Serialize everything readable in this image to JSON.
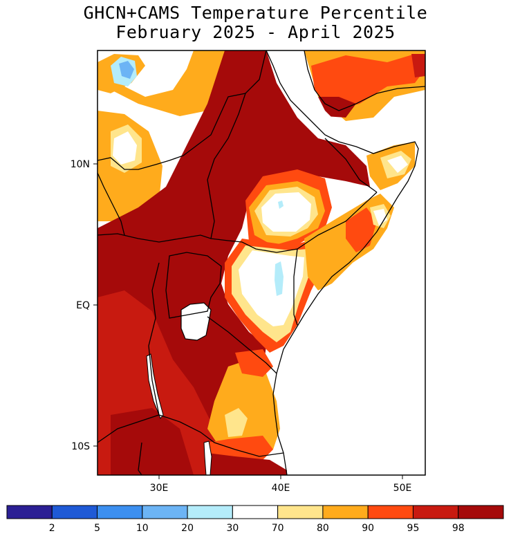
{
  "title": "GHCN+CAMS Temperature Percentile",
  "subtitle": "February 2025 - April 2025",
  "lat_labels": [
    "10N",
    "EQ",
    "10S"
  ],
  "lon_labels": [
    "30E",
    "40E",
    "50E"
  ],
  "colorbar": {
    "colors": [
      "#2b1f94",
      "#1f5ad6",
      "#3c8ff0",
      "#6cb4f5",
      "#b4ecfa",
      "#ffffff",
      "#ffe58c",
      "#ffab1c",
      "#ff4a10",
      "#c81a10",
      "#a50a0a"
    ],
    "labels": [
      "2",
      "5",
      "10",
      "20",
      "30",
      "70",
      "80",
      "90",
      "95",
      "98"
    ]
  },
  "colors": {
    "very_warm": "#a50a0a",
    "warm_98": "#c81a10",
    "warm_95": "#ff4a10",
    "warm_90": "#ffab1c",
    "warm_80": "#ffe58c",
    "neutral": "#ffffff",
    "cool_30": "#b4ecfa",
    "cool_20": "#6cb4f5"
  }
}
